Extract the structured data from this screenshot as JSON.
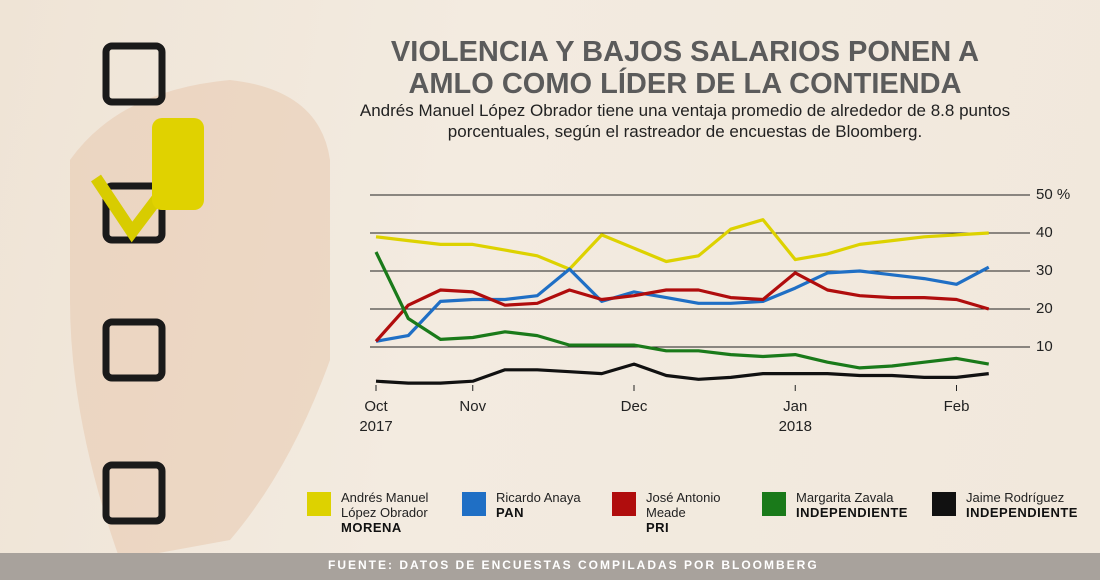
{
  "chart_data": {
    "type": "line",
    "title": "VIOLENCIA Y BAJOS SALARIOS PONEN A AMLO COMO LÍDER DE LA CONTIENDA",
    "subtitle": "Andrés Manuel López Obrador tiene una ventaja promedio de alrededor de 8.8 puntos porcentuales, según el rastreador de encuestas de Bloomberg.",
    "source": "FUENTE: DATOS DE ENCUESTAS COMPILADAS POR BLOOMBERG",
    "categories": [
      "Oct 2017",
      null,
      null,
      "Nov",
      null,
      null,
      null,
      null,
      "Dec",
      null,
      null,
      null,
      null,
      "Jan 2018",
      null,
      null,
      null,
      null,
      "Feb",
      null
    ],
    "ylim": [
      0,
      50
    ],
    "yticks": [
      10,
      20,
      30,
      40,
      {
        "value": 50,
        "label": "50 %"
      }
    ],
    "grid": true,
    "legend": "bottom",
    "series": [
      {
        "name": "Andrés Manuel López Obrador",
        "party": "MORENA",
        "color": "#ddd200",
        "values": [
          39,
          38,
          37,
          37,
          35.5,
          34,
          30.5,
          39.5,
          36,
          32.5,
          34,
          41,
          43.5,
          33,
          34.5,
          37,
          38,
          39,
          39.5,
          40
        ]
      },
      {
        "name": "Ricardo Anaya",
        "party": "PAN",
        "color": "#1f6fc5",
        "values": [
          11.5,
          13,
          22,
          22.5,
          22.5,
          23.5,
          30.5,
          22,
          24.5,
          23,
          21.5,
          21.5,
          22,
          25.5,
          29.5,
          30,
          29,
          28,
          26.5,
          31
        ]
      },
      {
        "name": "José Antonio Meade",
        "party": "PRI",
        "color": "#b00d0d",
        "values": [
          11.5,
          21,
          25,
          24.5,
          21,
          21.5,
          25,
          22.5,
          23.5,
          25,
          25,
          23,
          22.5,
          29.5,
          25,
          23.5,
          23,
          23,
          22.5,
          20
        ]
      },
      {
        "name": "Margarita Zavala",
        "party": "INDEPENDIENTE",
        "color": "#1a7a1a",
        "values": [
          35,
          17.5,
          12,
          12.5,
          14,
          13,
          10.5,
          10.5,
          10.5,
          9,
          9,
          8,
          7.5,
          8,
          6,
          4.5,
          5,
          6,
          7,
          5.5
        ]
      },
      {
        "name": "Jaime Rodríguez",
        "party": "INDEPENDIENTE",
        "color": "#111111",
        "values": [
          1,
          0.5,
          0.5,
          1,
          4,
          4,
          3.5,
          3,
          5.5,
          2.5,
          1.5,
          2,
          3,
          3,
          3,
          2.5,
          2.5,
          2,
          2,
          3
        ]
      }
    ]
  }
}
